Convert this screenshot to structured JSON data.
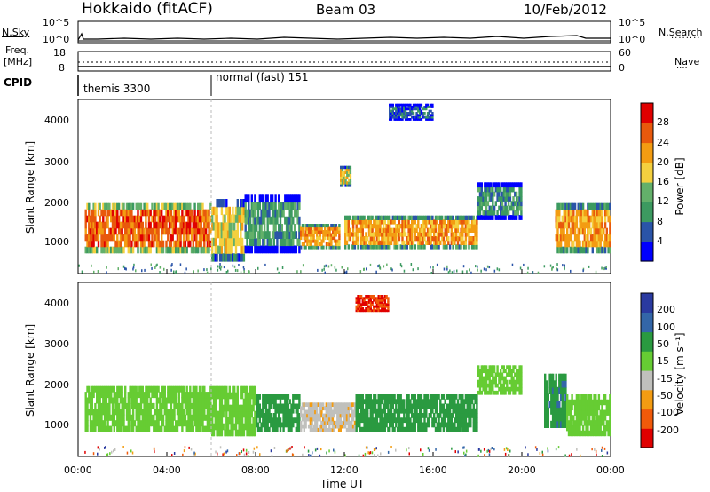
{
  "header": {
    "station": "Hokkaido (fitACF)",
    "beam": "Beam 03",
    "date": "10/Feb/2012"
  },
  "noise_panel": {
    "left_label": "N.Sky",
    "right_label": "N.Search",
    "left_ticks": [
      "10^5",
      "10^0"
    ],
    "right_ticks": [
      "10^5",
      "10^0"
    ]
  },
  "freq_panel": {
    "left_label_1": "Freq.",
    "left_label_2": "[MHz]",
    "right_label": "Nave",
    "left_ticks": [
      "18",
      "8"
    ],
    "right_ticks": [
      "60",
      "0"
    ]
  },
  "cpid_panel": {
    "label": "CPID",
    "modes": [
      {
        "name": "themis 3300",
        "start_hour": 0
      },
      {
        "name": "normal (fast) 151",
        "start_hour": 6
      }
    ]
  },
  "colors": {
    "power": [
      "#0000ff",
      "#2a54a8",
      "#3c9a60",
      "#63b06a",
      "#f4d03f",
      "#f39c12",
      "#e8590c",
      "#e00000"
    ],
    "velocity": [
      "#e00000",
      "#f05a0a",
      "#f39c12",
      "#c0c0bc",
      "#66cc33",
      "#2a9a40",
      "#3366a8",
      "#2a3aa0"
    ]
  },
  "chart_data": [
    {
      "type": "heatmap",
      "name": "power",
      "ylabel": "Slant Range [km]",
      "ylim": [
        300,
        4500
      ],
      "yticks": [
        "4000",
        "3000",
        "2000",
        "1000"
      ],
      "x": [
        "00:00",
        "04:00",
        "08:00",
        "12:00",
        "16:00",
        "20:00",
        "00:00"
      ],
      "colorbar_label": "Power [dB]",
      "colorbar_ticks": [
        "28",
        "24",
        "20",
        "16",
        "12",
        "8",
        "4"
      ],
      "bands": [
        {
          "t0": 0.3,
          "t1": 6.0,
          "r0": 800,
          "r1": 2000,
          "level": 28
        },
        {
          "t0": 6.0,
          "t1": 7.5,
          "r0": 600,
          "r1": 2100,
          "level": 20
        },
        {
          "t0": 7.5,
          "t1": 10.0,
          "r0": 800,
          "r1": 2200,
          "level": 12
        },
        {
          "t0": 10.0,
          "t1": 11.8,
          "r0": 900,
          "r1": 1500,
          "level": 24
        },
        {
          "t0": 12.0,
          "t1": 18.0,
          "r0": 900,
          "r1": 1700,
          "level": 24
        },
        {
          "t0": 18.0,
          "t1": 20.0,
          "r0": 1600,
          "r1": 2500,
          "level": 12
        },
        {
          "t0": 21.5,
          "t1": 24.0,
          "r0": 800,
          "r1": 2000,
          "level": 24
        },
        {
          "t0": 14.0,
          "t1": 16.0,
          "r0": 4000,
          "r1": 4400,
          "level": 8
        },
        {
          "t0": 11.8,
          "t1": 12.3,
          "r0": 2400,
          "r1": 2900,
          "level": 20
        }
      ]
    },
    {
      "type": "heatmap",
      "name": "velocity",
      "ylabel": "Slant Range [km]",
      "xlabel": "Time UT",
      "ylim": [
        300,
        4500
      ],
      "yticks": [
        "4000",
        "3000",
        "2000",
        "1000"
      ],
      "x": [
        "00:00",
        "04:00",
        "08:00",
        "12:00",
        "16:00",
        "20:00",
        "00:00"
      ],
      "colorbar_label": "Velocity [m s⁻¹]",
      "colorbar_ticks": [
        "200",
        "100",
        "50",
        "15",
        "-15",
        "-50",
        "-100",
        "-200"
      ],
      "bands": [
        {
          "t0": 0.3,
          "t1": 6.0,
          "r0": 900,
          "r1": 2000,
          "level": 0
        },
        {
          "t0": 6.0,
          "t1": 8.0,
          "r0": 800,
          "r1": 2000,
          "level": 0
        },
        {
          "t0": 8.0,
          "t1": 10.0,
          "r0": 900,
          "r1": 1800,
          "level": 30
        },
        {
          "t0": 10.0,
          "t1": 12.5,
          "r0": 900,
          "r1": 1600,
          "level": -40
        },
        {
          "t0": 12.5,
          "t1": 18.0,
          "r0": 900,
          "r1": 1800,
          "level": 30
        },
        {
          "t0": 18.0,
          "t1": 20.0,
          "r0": 1800,
          "r1": 2500,
          "level": 0
        },
        {
          "t0": 21.0,
          "t1": 22.0,
          "r0": 1000,
          "r1": 2300,
          "level": 40
        },
        {
          "t0": 22.0,
          "t1": 24.0,
          "r0": 800,
          "r1": 1800,
          "level": 0
        },
        {
          "t0": 12.5,
          "t1": 14.0,
          "r0": 3800,
          "r1": 4200,
          "level": -200
        }
      ]
    }
  ]
}
